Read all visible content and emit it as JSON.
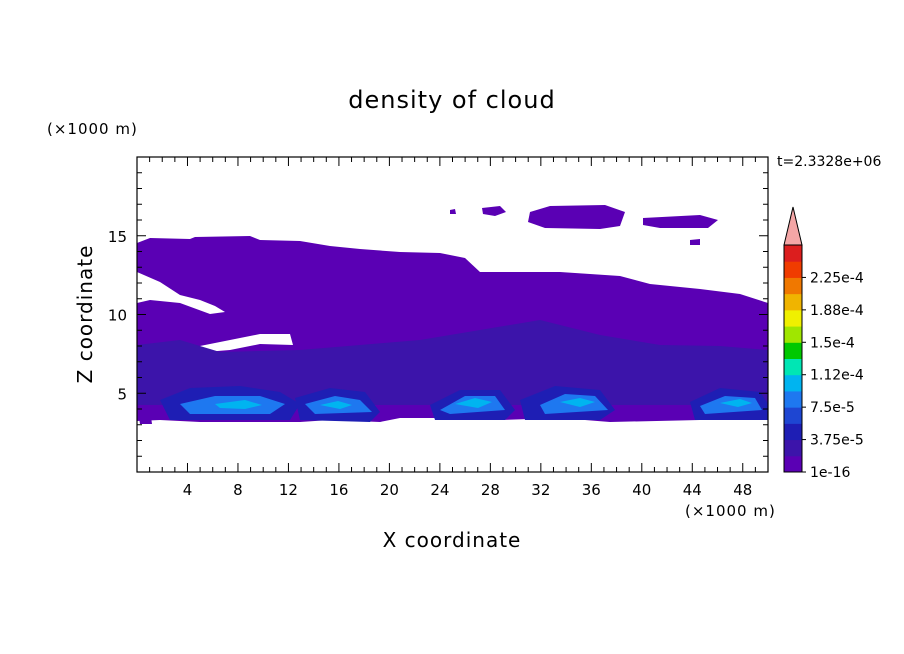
{
  "chart_data": {
    "type": "heatmap",
    "title": "density of cloud",
    "xlabel": "X coordinate",
    "ylabel": "Z coordinate",
    "x_unit": "(×1000 m)",
    "y_unit": "(×1000 m)",
    "time_label": "t=2.3328e+06",
    "xlim": [
      0,
      50
    ],
    "ylim": [
      0,
      20
    ],
    "x_ticks": [
      4,
      8,
      12,
      16,
      20,
      24,
      28,
      32,
      36,
      40,
      44,
      48
    ],
    "y_ticks": [
      5,
      10,
      15
    ],
    "colorbar": {
      "labels": [
        "1e-16",
        "3.75e-5",
        "7.5e-5",
        "1.12e-4",
        "1.5e-4",
        "1.88e-4",
        "2.25e-4"
      ],
      "levels": 12,
      "extend": "max",
      "colors": [
        "#5a00b4",
        "#3c14aa",
        "#1e1eb4",
        "#1e46d2",
        "#1e78f0",
        "#00b4f0",
        "#00e6b4",
        "#00c800",
        "#a0e600",
        "#f0f000",
        "#f0b400",
        "#f07800",
        "#f03c00",
        "#dc1e1e"
      ],
      "extend_color": "#f4a6a6"
    },
    "regions": [
      {
        "name": "upper cloud layer",
        "level": 0,
        "x": [
          0,
          50
        ],
        "z": [
          3.5,
          14.8
        ]
      },
      {
        "name": "high cloud patches",
        "level": 0,
        "x": [
          25,
          44
        ],
        "z": [
          15.8,
          17
        ]
      },
      {
        "name": "low dense cores",
        "level": 4,
        "x_centers": [
          8,
          15.5,
          28,
          34.5,
          47
        ],
        "z": [
          3.5,
          5.5
        ]
      }
    ]
  }
}
